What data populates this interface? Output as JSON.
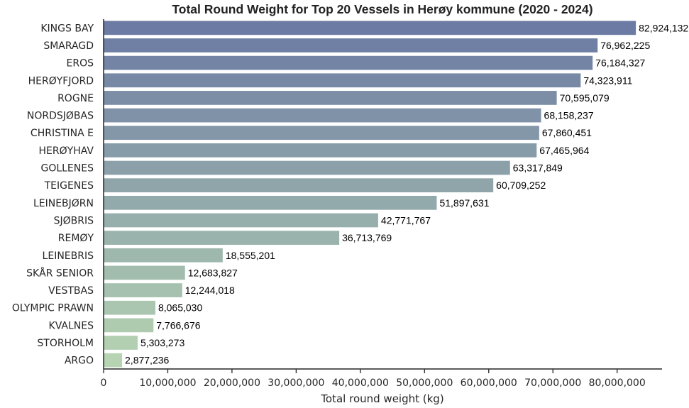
{
  "chart_data": {
    "type": "bar",
    "orientation": "horizontal",
    "title": "Total Round Weight for Top 20 Vessels in Herøy kommune (2020 - 2024)",
    "xlabel": "Total round weight (kg)",
    "ylabel": "",
    "xlim": [
      0,
      87000000
    ],
    "xticks": [
      0,
      10000000,
      20000000,
      30000000,
      40000000,
      50000000,
      60000000,
      70000000,
      80000000
    ],
    "xtick_labels": [
      "0",
      "10,000,000",
      "20,000,000",
      "30,000,000",
      "40,000,000",
      "50,000,000",
      "60,000,000",
      "70,000,000",
      "80,000,000"
    ],
    "grid": false,
    "colors": {
      "bar_start": "#6b7ba3",
      "bar_end": "#b6d4b2",
      "axis": "#262626",
      "text": "#262626"
    },
    "categories": [
      "KINGS BAY",
      "SMARAGD",
      "EROS",
      "HERØYFJORD",
      "ROGNE",
      "NORDSJØBAS",
      "CHRISTINA E",
      "HERØYHAV",
      "GOLLENES",
      "TEIGENES",
      "LEINEBJØRN",
      "SJØBRIS",
      "REMØY",
      "LEINEBRIS",
      "SKÅR SENIOR",
      "VESTBAS",
      "OLYMPIC PRAWN",
      "KVALNES",
      "STORHOLM",
      "ARGO"
    ],
    "values": [
      82924132,
      76962225,
      76184327,
      74323911,
      70595079,
      68158237,
      67860451,
      67465964,
      63317849,
      60709252,
      51897631,
      42771767,
      36713769,
      18555201,
      12683827,
      12244018,
      8065030,
      7766676,
      5303273,
      2877236
    ],
    "value_labels": [
      "82,924,132",
      "76,962,225",
      "76,184,327",
      "74,323,911",
      "70,595,079",
      "68,158,237",
      "67,860,451",
      "67,465,964",
      "63,317,849",
      "60,709,252",
      "51,897,631",
      "42,771,767",
      "36,713,769",
      "18,555,201",
      "12,683,827",
      "12,244,018",
      "8,065,030",
      "7,766,676",
      "5,303,273",
      "2,877,236"
    ]
  }
}
